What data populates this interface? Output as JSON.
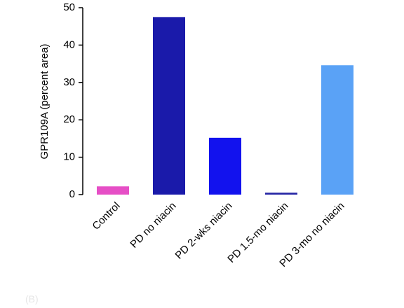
{
  "chart_data": {
    "type": "bar",
    "y_label": "GPR109A  (percent area)",
    "categories": [
      "Control",
      "PD no niacin",
      "PD 2-wks niacin",
      "PD 1.5-mo niacin",
      "PD 3-mo no niacin"
    ],
    "values": [
      2.2,
      47.5,
      15.2,
      0.5,
      34.6
    ],
    "colors": [
      "#e64fc6",
      "#1a1aaa",
      "#1212ee",
      "#2424a4",
      "#5aa2f6"
    ],
    "ylim": [
      0,
      50
    ],
    "yticks": [
      0,
      10,
      20,
      30,
      40,
      50
    ],
    "panel_label": "(B)"
  }
}
